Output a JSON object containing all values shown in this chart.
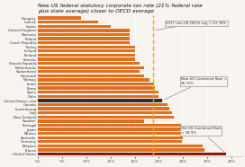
{
  "title": "New US federal statutory corporate tax rate (21% federal rate\nplus state average) closer to OECD average",
  "countries": [
    "United States",
    "France",
    "Belgium",
    "Germany",
    "Australia",
    "Mexico",
    "Japan",
    "Portugal",
    "Sweden",
    "New Zealand",
    "Italy",
    "Luxembourg",
    "Canada",
    "United States_new",
    "Chile",
    "Spain",
    "Korea",
    "Israel",
    "Norway",
    "Denmark",
    "Switzerland",
    "Netherlands",
    "Slovak Republic",
    "Estonia",
    "Finland",
    "Iceland",
    "Turkey",
    "Czech Republic",
    "Poland",
    "Slovenia",
    "United Kingdom",
    "Latvia",
    "Ireland",
    "Hungary"
  ],
  "values": [
    38.9,
    34.4,
    34.0,
    29.8,
    30.0,
    30.0,
    30.6,
    29.5,
    22.0,
    28.0,
    27.8,
    27.1,
    26.7,
    25.75,
    25.0,
    25.0,
    24.2,
    24.0,
    23.0,
    22.0,
    21.1,
    22.0,
    21.0,
    20.0,
    20.0,
    20.0,
    20.0,
    19.0,
    19.0,
    19.0,
    19.0,
    15.0,
    12.5,
    9.0
  ],
  "bar_colors": [
    "#8b1a00",
    "#e07020",
    "#e07020",
    "#e07020",
    "#e07020",
    "#e07020",
    "#e07020",
    "#e07020",
    "#e07020",
    "#e07020",
    "#e07020",
    "#e07020",
    "#e07020",
    "#3d2b1f",
    "#e07020",
    "#e07020",
    "#e07020",
    "#e07020",
    "#e07020",
    "#e07020",
    "#e07020",
    "#e07020",
    "#e07020",
    "#e07020",
    "#e07020",
    "#e07020",
    "#e07020",
    "#e07020",
    "#e07020",
    "#e07020",
    "#e07020",
    "#e07020",
    "#e07020",
    "#e07020"
  ],
  "oecd_avg": 23.78,
  "new_us_rate": 25.75,
  "old_us_rate": 38.9,
  "xlim": [
    0,
    42
  ],
  "xticks": [
    0,
    5,
    10,
    15,
    20,
    25,
    30,
    35,
    40
  ],
  "xtick_labels": [
    "0%",
    "5%",
    "10%",
    "15%",
    "20%",
    "25%",
    "30%",
    "35%",
    "40%"
  ],
  "background_color": "#f7f3ee",
  "annotation_oecd": "2017 non-US OECD avg = 23.78%",
  "annotation_new": "New US Combined Rate =\n25.75%",
  "annotation_old": "Old US Combined Rate\n= 38.9%"
}
